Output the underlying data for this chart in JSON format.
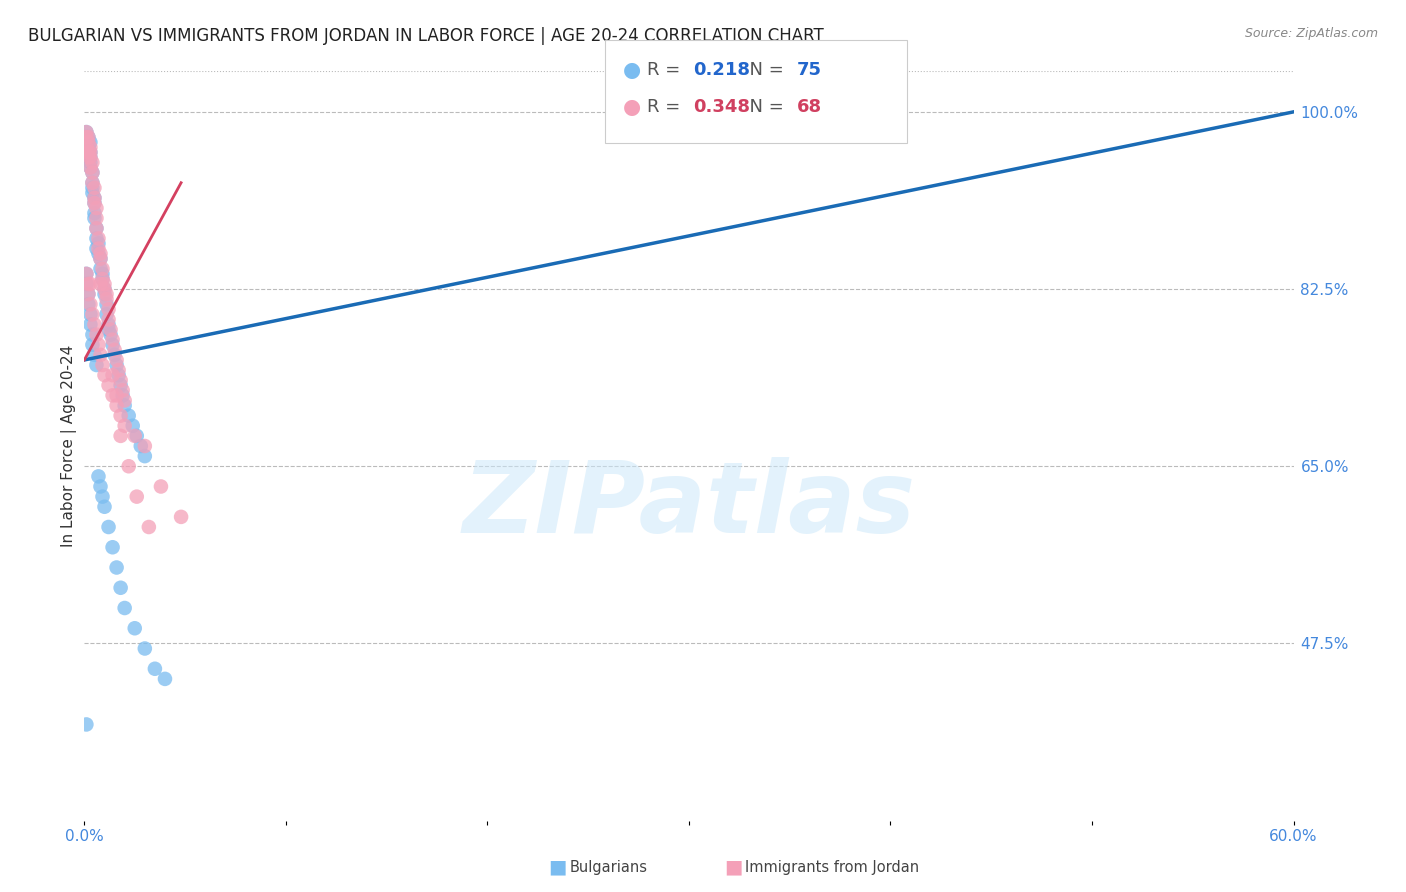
{
  "title": "BULGARIAN VS IMMIGRANTS FROM JORDAN IN LABOR FORCE | AGE 20-24 CORRELATION CHART",
  "source": "Source: ZipAtlas.com",
  "ylabel": "In Labor Force | Age 20-24",
  "xlim": [
    0.0,
    0.6
  ],
  "ylim": [
    0.3,
    1.04
  ],
  "xticks": [
    0.0,
    0.1,
    0.2,
    0.3,
    0.4,
    0.5,
    0.6
  ],
  "xticklabels": [
    "0.0%",
    "",
    "",
    "",
    "",
    "",
    "60.0%"
  ],
  "yticks_right": [
    1.0,
    0.825,
    0.65,
    0.475
  ],
  "yticklabels_right": [
    "100.0%",
    "82.5%",
    "65.0%",
    "47.5%"
  ],
  "blue_color": "#7abcf0",
  "pink_color": "#f4a0b8",
  "blue_line_color": "#1a6bb5",
  "pink_line_color": "#d44060",
  "legend_R_blue": "0.218",
  "legend_N_blue": "75",
  "legend_R_pink": "0.348",
  "legend_N_pink": "68",
  "legend_label_blue": "Bulgarians",
  "legend_label_pink": "Immigrants from Jordan",
  "watermark": "ZIPatlas",
  "background_color": "#ffffff",
  "grid_color": "#bbbbbb",
  "blue_x": [
    0.001,
    0.001,
    0.001,
    0.001,
    0.002,
    0.002,
    0.002,
    0.002,
    0.002,
    0.003,
    0.003,
    0.003,
    0.003,
    0.003,
    0.004,
    0.004,
    0.004,
    0.004,
    0.005,
    0.005,
    0.005,
    0.005,
    0.006,
    0.006,
    0.006,
    0.007,
    0.007,
    0.008,
    0.008,
    0.009,
    0.009,
    0.01,
    0.01,
    0.011,
    0.011,
    0.012,
    0.012,
    0.013,
    0.014,
    0.015,
    0.016,
    0.017,
    0.018,
    0.019,
    0.02,
    0.022,
    0.024,
    0.026,
    0.028,
    0.03,
    0.001,
    0.001,
    0.002,
    0.002,
    0.003,
    0.003,
    0.004,
    0.004,
    0.005,
    0.006,
    0.007,
    0.008,
    0.009,
    0.01,
    0.012,
    0.014,
    0.016,
    0.018,
    0.02,
    0.025,
    0.03,
    0.035,
    0.04,
    0.32,
    0.001
  ],
  "blue_y": [
    0.98,
    0.975,
    0.97,
    0.965,
    0.975,
    0.97,
    0.965,
    0.96,
    0.955,
    0.97,
    0.96,
    0.955,
    0.95,
    0.945,
    0.94,
    0.93,
    0.925,
    0.92,
    0.915,
    0.91,
    0.9,
    0.895,
    0.885,
    0.875,
    0.865,
    0.87,
    0.86,
    0.855,
    0.845,
    0.84,
    0.835,
    0.825,
    0.82,
    0.81,
    0.8,
    0.79,
    0.785,
    0.78,
    0.77,
    0.76,
    0.75,
    0.74,
    0.73,
    0.72,
    0.71,
    0.7,
    0.69,
    0.68,
    0.67,
    0.66,
    0.84,
    0.83,
    0.82,
    0.81,
    0.8,
    0.79,
    0.78,
    0.77,
    0.76,
    0.75,
    0.64,
    0.63,
    0.62,
    0.61,
    0.59,
    0.57,
    0.55,
    0.53,
    0.51,
    0.49,
    0.47,
    0.45,
    0.44,
    1.0,
    0.395
  ],
  "pink_x": [
    0.001,
    0.001,
    0.001,
    0.002,
    0.002,
    0.002,
    0.002,
    0.003,
    0.003,
    0.003,
    0.003,
    0.004,
    0.004,
    0.004,
    0.005,
    0.005,
    0.005,
    0.006,
    0.006,
    0.006,
    0.007,
    0.007,
    0.008,
    0.008,
    0.009,
    0.009,
    0.01,
    0.01,
    0.011,
    0.011,
    0.012,
    0.012,
    0.013,
    0.014,
    0.015,
    0.016,
    0.017,
    0.018,
    0.019,
    0.02,
    0.001,
    0.002,
    0.002,
    0.003,
    0.004,
    0.005,
    0.006,
    0.007,
    0.008,
    0.009,
    0.01,
    0.012,
    0.014,
    0.016,
    0.018,
    0.02,
    0.025,
    0.03,
    0.003,
    0.008,
    0.014,
    0.016,
    0.018,
    0.022,
    0.026,
    0.032,
    0.038,
    0.048
  ],
  "pink_y": [
    0.98,
    0.975,
    0.965,
    0.975,
    0.97,
    0.96,
    0.955,
    0.965,
    0.96,
    0.955,
    0.945,
    0.95,
    0.94,
    0.93,
    0.925,
    0.915,
    0.91,
    0.905,
    0.895,
    0.885,
    0.875,
    0.865,
    0.86,
    0.855,
    0.845,
    0.835,
    0.83,
    0.825,
    0.82,
    0.815,
    0.805,
    0.795,
    0.785,
    0.775,
    0.765,
    0.755,
    0.745,
    0.735,
    0.725,
    0.715,
    0.84,
    0.83,
    0.82,
    0.81,
    0.8,
    0.79,
    0.78,
    0.77,
    0.76,
    0.75,
    0.74,
    0.73,
    0.72,
    0.71,
    0.7,
    0.69,
    0.68,
    0.67,
    0.83,
    0.83,
    0.74,
    0.72,
    0.68,
    0.65,
    0.62,
    0.59,
    0.63,
    0.6
  ],
  "title_fontsize": 12,
  "axis_label_fontsize": 11,
  "tick_fontsize": 11,
  "legend_fontsize": 13
}
